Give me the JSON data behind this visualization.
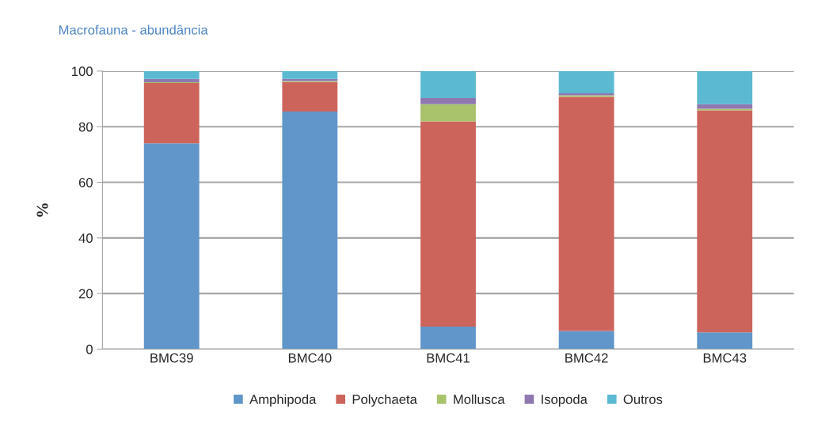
{
  "chart_data": {
    "type": "bar",
    "title": "Macrofauna - abundância",
    "ylabel": "%",
    "categories": [
      "BMC39",
      "BMC40",
      "BMC41",
      "BMC42",
      "BMC43"
    ],
    "stacked": true,
    "series": [
      {
        "name": "Amphipoda",
        "color": "#6096c9",
        "values": [
          74,
          85.5,
          8.1,
          6.5,
          6
        ]
      },
      {
        "name": "Polychaeta",
        "color": "#cd645c",
        "values": [
          21.7,
          10.6,
          73.8,
          84.2,
          79.9
        ]
      },
      {
        "name": "Mollusca",
        "color": "#a9c36d",
        "values": [
          0.3,
          0.3,
          6.2,
          0.6,
          0.6
        ]
      },
      {
        "name": "Isopoda",
        "color": "#8f78b0",
        "values": [
          1.2,
          0.8,
          2.2,
          0.7,
          1.6
        ]
      },
      {
        "name": "Outros",
        "color": "#5bb9d2",
        "values": [
          2.8,
          2.8,
          9.7,
          8,
          11.9
        ]
      }
    ],
    "ylim": [
      0,
      100
    ],
    "yticks": [
      0,
      20,
      40,
      60,
      80,
      100
    ],
    "grid": "y",
    "legend": "bottom"
  }
}
